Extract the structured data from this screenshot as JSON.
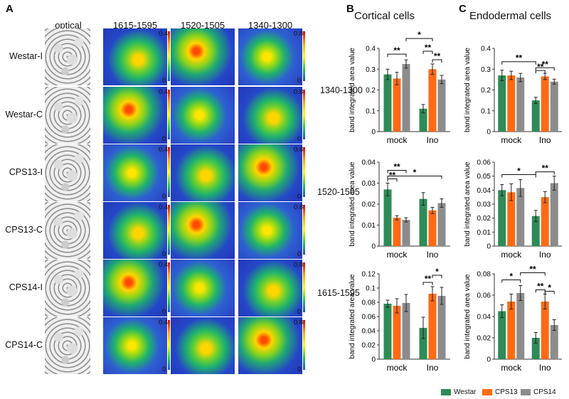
{
  "panel_letters": {
    "a": "A",
    "b": "B",
    "c": "C"
  },
  "image_panel": {
    "column_headers": [
      "optical",
      "1615-1595",
      "1520-1505",
      "1340-1300"
    ],
    "row_labels": [
      "Westar-I",
      "Westar-C",
      "CPS13-I",
      "CPS13-C",
      "CPS14-I",
      "CPS14-C"
    ],
    "scale_labels": {
      "col1_top": "0.4",
      "col1_bottom": "0",
      "col3_top": "0.8",
      "col3_bottom": "0"
    }
  },
  "section_titles": {
    "cortical": "Cortical cells",
    "endodermal": "Endodermal cells"
  },
  "row_band_labels": [
    "1340-1300",
    "1520-1505",
    "1615-1595"
  ],
  "ylabel": "band integrated area value",
  "legend": [
    {
      "name": "Westar",
      "color": "#2e8b57"
    },
    {
      "name": "CPS13",
      "color": "#ff6a13"
    },
    {
      "name": "CPS14",
      "color": "#8c8c8c"
    }
  ],
  "chart_data": [
    {
      "type": "bar",
      "panel": "B",
      "band": "1340-1300",
      "categories": [
        "mock",
        "Ino"
      ],
      "ylabel": "band integrated area value",
      "ylim": [
        0,
        0.4
      ],
      "yticks": [
        "0",
        "0.1",
        "0.2",
        "0.3",
        "0.4"
      ],
      "series": [
        {
          "name": "Westar",
          "values": [
            0.275,
            0.11
          ],
          "errors": [
            0.025,
            0.02
          ]
        },
        {
          "name": "CPS13",
          "values": [
            0.255,
            0.3
          ],
          "errors": [
            0.03,
            0.025
          ]
        },
        {
          "name": "CPS14",
          "values": [
            0.325,
            0.25
          ],
          "errors": [
            0.02,
            0.02
          ]
        }
      ],
      "annotations": [
        "**",
        "**",
        "**",
        "*"
      ]
    },
    {
      "type": "bar",
      "panel": "C",
      "band": "1340-1300",
      "categories": [
        "mock",
        "Ino"
      ],
      "ylabel": "band integrated area value",
      "ylim": [
        0,
        0.4
      ],
      "yticks": [
        "0",
        "0.1",
        "0.2",
        "0.3",
        "0.4"
      ],
      "series": [
        {
          "name": "Westar",
          "values": [
            0.27,
            0.15
          ],
          "errors": [
            0.025,
            0.015
          ]
        },
        {
          "name": "CPS13",
          "values": [
            0.27,
            0.265
          ],
          "errors": [
            0.02,
            0.015
          ]
        },
        {
          "name": "CPS14",
          "values": [
            0.26,
            0.24
          ],
          "errors": [
            0.02,
            0.012
          ]
        }
      ],
      "annotations": [
        "**",
        "**",
        "**"
      ]
    },
    {
      "type": "bar",
      "panel": "B",
      "band": "1520-1505",
      "categories": [
        "mock",
        "Ino"
      ],
      "ylabel": "band integrated area value",
      "ylim": [
        0,
        0.04
      ],
      "yticks": [
        "0",
        "0.01",
        "0.02",
        "0.03",
        "0.04"
      ],
      "series": [
        {
          "name": "Westar",
          "values": [
            0.027,
            0.0225
          ],
          "errors": [
            0.003,
            0.003
          ]
        },
        {
          "name": "CPS13",
          "values": [
            0.0135,
            0.017
          ],
          "errors": [
            0.001,
            0.0015
          ]
        },
        {
          "name": "CPS14",
          "values": [
            0.0125,
            0.0205
          ],
          "errors": [
            0.001,
            0.002
          ]
        }
      ],
      "annotations": [
        "**",
        "**",
        "*"
      ]
    },
    {
      "type": "bar",
      "panel": "C",
      "band": "1520-1505",
      "categories": [
        "mock",
        "Ino"
      ],
      "ylabel": "band integrated area value",
      "ylim": [
        0,
        0.06
      ],
      "yticks": [
        "0",
        "0.01",
        "0.02",
        "0.03",
        "0.04",
        "0.05",
        "0.06"
      ],
      "series": [
        {
          "name": "Westar",
          "values": [
            0.04,
            0.0215
          ],
          "errors": [
            0.004,
            0.004
          ]
        },
        {
          "name": "CPS13",
          "values": [
            0.0385,
            0.035
          ],
          "errors": [
            0.006,
            0.004
          ]
        },
        {
          "name": "CPS14",
          "values": [
            0.0415,
            0.045
          ],
          "errors": [
            0.006,
            0.005
          ]
        }
      ],
      "annotations": [
        "*",
        "**"
      ]
    },
    {
      "type": "bar",
      "panel": "B",
      "band": "1615-1595",
      "categories": [
        "mock",
        "Ino"
      ],
      "ylabel": "band integrated area value",
      "ylim": [
        0,
        0.12
      ],
      "yticks": [
        "0",
        "0.02",
        "0.04",
        "0.06",
        "0.08",
        "0.1",
        "0.12"
      ],
      "series": [
        {
          "name": "Westar",
          "values": [
            0.078,
            0.044
          ],
          "errors": [
            0.005,
            0.015
          ]
        },
        {
          "name": "CPS13",
          "values": [
            0.075,
            0.092
          ],
          "errors": [
            0.01,
            0.01
          ]
        },
        {
          "name": "CPS14",
          "values": [
            0.079,
            0.089
          ],
          "errors": [
            0.012,
            0.012
          ]
        }
      ],
      "annotations": [
        "*",
        "**"
      ]
    },
    {
      "type": "bar",
      "panel": "C",
      "band": "1615-1595",
      "categories": [
        "mock",
        "Ino"
      ],
      "ylabel": "band integrated area value",
      "ylim": [
        0,
        0.08
      ],
      "yticks": [
        "0",
        "0.02",
        "0.04",
        "0.06",
        "0.08"
      ],
      "series": [
        {
          "name": "Westar",
          "values": [
            0.045,
            0.02
          ],
          "errors": [
            0.006,
            0.005
          ]
        },
        {
          "name": "CPS13",
          "values": [
            0.054,
            0.054
          ],
          "errors": [
            0.007,
            0.007
          ]
        },
        {
          "name": "CPS14",
          "values": [
            0.062,
            0.032
          ],
          "errors": [
            0.007,
            0.005
          ]
        }
      ],
      "annotations": [
        "*",
        "**",
        "**",
        "*"
      ]
    }
  ]
}
